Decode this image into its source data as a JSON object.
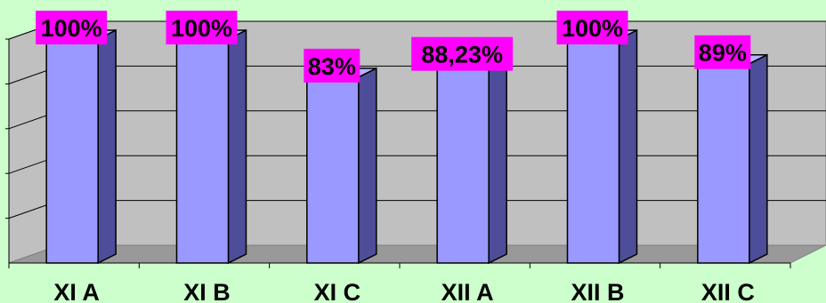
{
  "chart_data": {
    "type": "bar",
    "title": "",
    "xlabel": "",
    "ylabel": "",
    "categories": [
      "XI A",
      "XI B",
      "XI C",
      "XII A",
      "XII B",
      "XII C"
    ],
    "values": [
      100,
      100,
      83,
      88.23,
      100,
      89
    ],
    "data_labels": [
      "100%",
      "100%",
      "83%",
      "88,23%",
      "100%",
      "89%"
    ],
    "ylim": [
      0,
      100
    ],
    "grid": true,
    "legend": "none",
    "colors": {
      "background": "#ccffcc",
      "bar_front": "#9999ff",
      "bar_side": "#4d4d99",
      "plot_back": "#c0c0c0",
      "floor": "#999999",
      "label_box": "#ff00ff",
      "grid": "#000000"
    }
  }
}
